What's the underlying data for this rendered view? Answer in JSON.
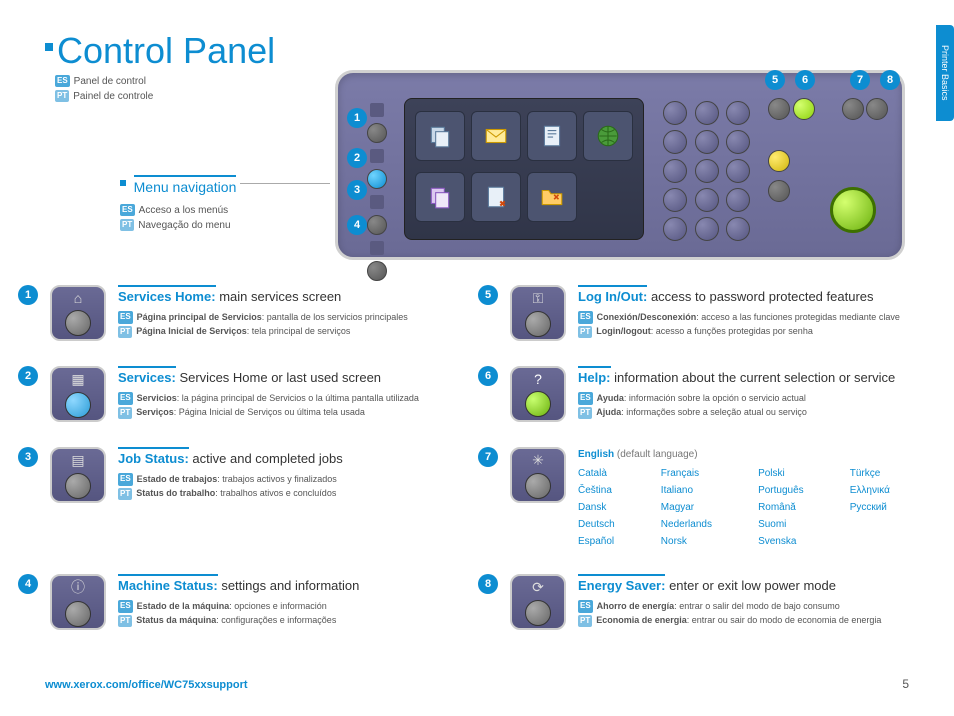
{
  "page": {
    "title": "Control Panel",
    "subtitle_es": "Panel de control",
    "subtitle_pt": "Painel de controle",
    "side_tab": "Printer Basics",
    "footer_url": "www.xerox.com/office/WC75xxsupport",
    "page_number": "5"
  },
  "nav": {
    "title": "Menu navigation",
    "es": "Acceso a los menús",
    "pt": "Navegação do menu"
  },
  "lang_section": {
    "heading": "English",
    "note": "(default language)",
    "langs": [
      "Català",
      "Français",
      "Polski",
      "Türkçe",
      "Čeština",
      "Italiano",
      "Português",
      "Ελληνικά",
      "Dansk",
      "Magyar",
      "Română",
      "Русский",
      "Deutsch",
      "Nederlands",
      "Suomi",
      "",
      "Español",
      "Norsk",
      "Svenska",
      ""
    ]
  },
  "features": [
    {
      "num": "1",
      "title": "Services Home:",
      "desc": "main services screen",
      "es_b": "Página principal de Servicios",
      "es_t": ": pantalla de los servicios principales",
      "pt_b": "Página Inicial de Serviços",
      "pt_t": ": tela principal de serviços",
      "btn": "home",
      "btn_color": "grey"
    },
    {
      "num": "2",
      "title": "Services:",
      "desc": "Services Home or last used screen",
      "es_b": "Servicios",
      "es_t": ": la página principal de Servicios o la última pantalla utilizada",
      "pt_b": "Serviços",
      "pt_t": ": Página Inicial de Serviços ou última tela usada",
      "btn": "services",
      "btn_color": "blue"
    },
    {
      "num": "3",
      "title": "Job Status:",
      "desc": "active and completed jobs",
      "es_b": "Estado de trabajos",
      "es_t": ": trabajos activos y finalizados",
      "pt_b": "Status do trabalho",
      "pt_t": ": trabalhos ativos e concluídos",
      "btn": "jobs",
      "btn_color": "grey"
    },
    {
      "num": "4",
      "title": "Machine Status:",
      "desc": "settings and information",
      "es_b": "Estado de la máquina",
      "es_t": ": opciones e información",
      "pt_b": "Status da máquina",
      "pt_t": ": configurações e informações",
      "btn": "machine",
      "btn_color": "grey"
    },
    {
      "num": "5",
      "title": "Log In/Out:",
      "desc": "access to password protected features",
      "es_b": "Conexión/Desconexión",
      "es_t": ": acceso a las funciones protegidas mediante clave",
      "pt_b": "Login/logout",
      "pt_t": ": acesso a funções protegidas por senha",
      "btn": "key",
      "btn_color": "grey"
    },
    {
      "num": "6",
      "title": "Help:",
      "desc": "information about the current selection or service",
      "es_b": "Ayuda",
      "es_t": ": información sobre la opción o servicio actual",
      "pt_b": "Ajuda",
      "pt_t": ": informações sobre a seleção atual ou serviço",
      "btn": "help",
      "btn_color": "green"
    },
    {
      "num": "7",
      "title": "",
      "desc": "",
      "es_b": "",
      "es_t": "",
      "pt_b": "",
      "pt_t": "",
      "btn": "lang",
      "btn_color": "grey"
    },
    {
      "num": "8",
      "title": "Energy Saver:",
      "desc": "enter or exit low power mode",
      "es_b": "Ahorro de energía",
      "es_t": ": entrar o salir del modo de bajo consumo",
      "pt_b": "Economia de energia",
      "pt_t": ": entrar ou sair do modo de economia de energia",
      "btn": "power",
      "btn_color": "grey"
    }
  ],
  "colors": {
    "accent": "#0d8dd1",
    "panel": "#6a6a95"
  }
}
